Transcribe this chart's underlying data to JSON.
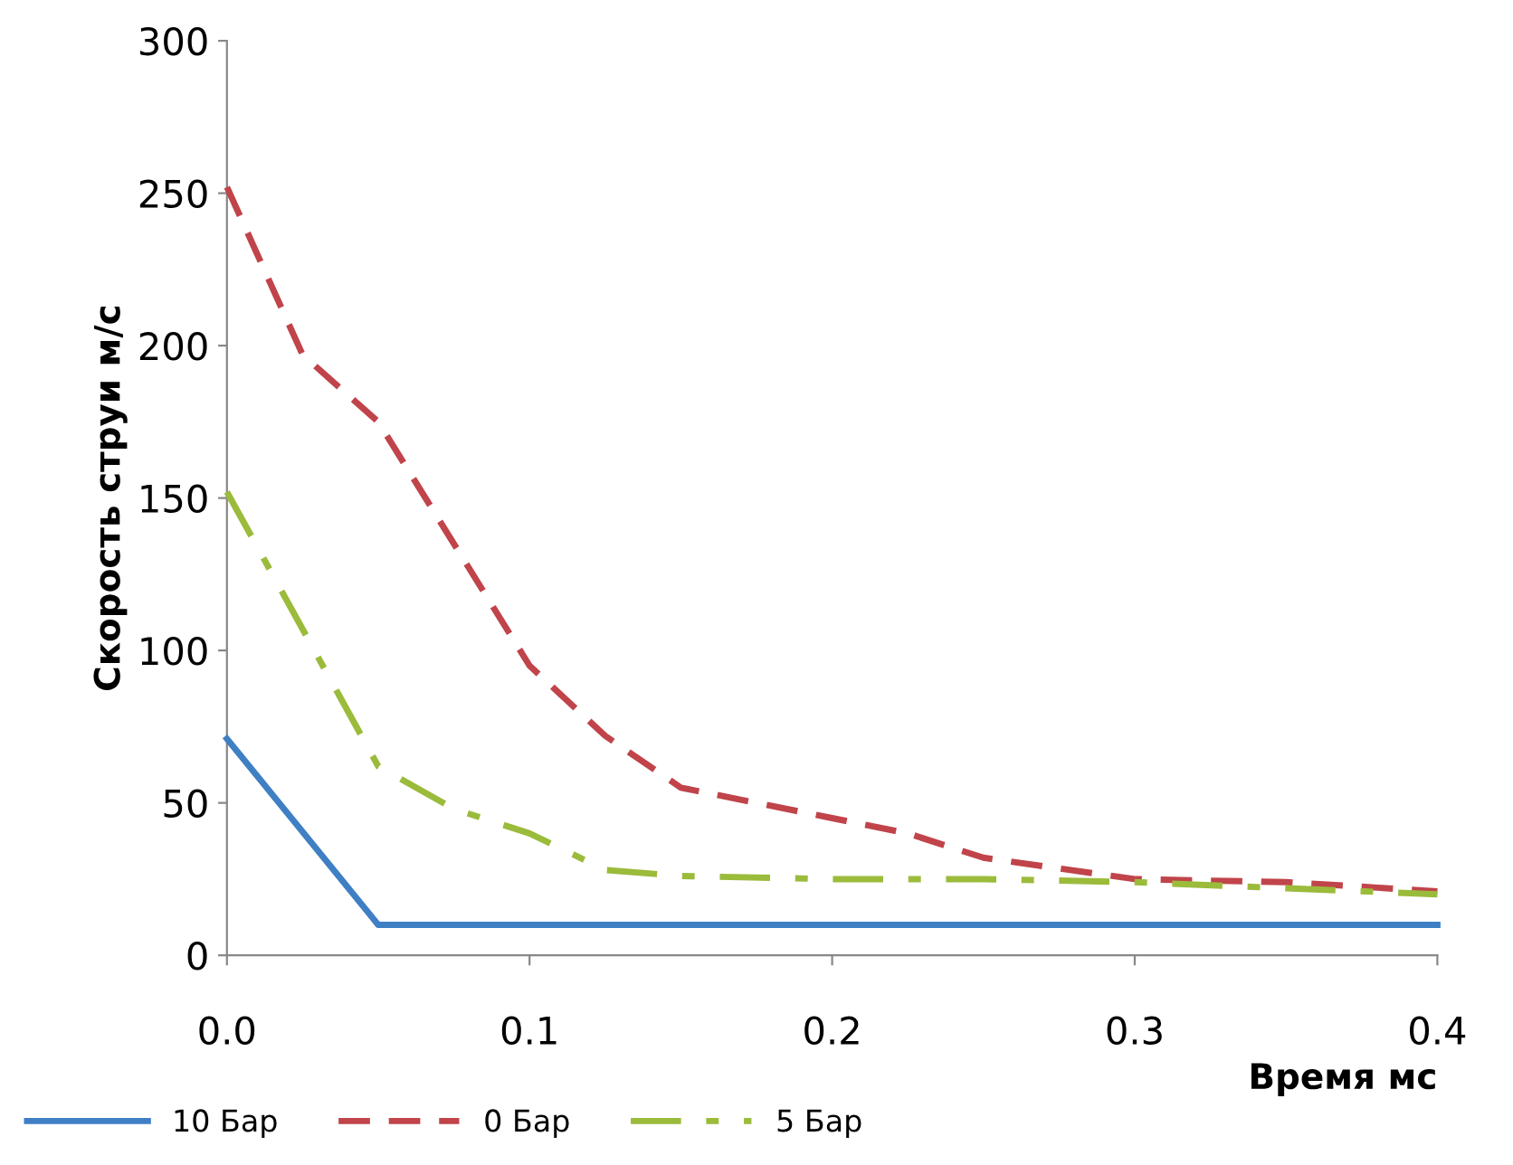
{
  "chart_data": {
    "type": "line",
    "xlabel": "Время мс",
    "ylabel": "Скорость струи м/с",
    "xlim": [
      0,
      0.4
    ],
    "xticks": [
      {
        "value": 0,
        "label": "0.0"
      },
      0.1,
      0.2,
      0.3,
      0.4
    ],
    "ylim": [
      0,
      300
    ],
    "yticks": [
      0,
      50,
      100,
      150,
      200,
      250,
      300
    ],
    "grid": false,
    "legend": "bottom",
    "marker": "none",
    "series": [
      {
        "name": "10 Бар",
        "color": "#3f7fc4",
        "line_style": "solid",
        "x": [
          0,
          0.05,
          0.4
        ],
        "values": [
          71,
          10,
          10
        ]
      },
      {
        "name": "0 Бар",
        "color": "#c0444a",
        "line_style": "dashed",
        "x": [
          0,
          0.025,
          0.05,
          0.1,
          0.125,
          0.15,
          0.2,
          0.225,
          0.25,
          0.3,
          0.35,
          0.4
        ],
        "values": [
          252,
          197,
          175,
          95,
          72,
          55,
          45,
          40,
          32,
          25,
          24,
          21
        ]
      },
      {
        "name": "5 Бар",
        "color": "#9bbb3b",
        "line_style": "dashdot",
        "x": [
          0,
          0.05,
          0.075,
          0.1,
          0.125,
          0.15,
          0.2,
          0.25,
          0.3,
          0.35,
          0.4
        ],
        "values": [
          152,
          62,
          48,
          40,
          28,
          26,
          25,
          25,
          24,
          22,
          20
        ]
      }
    ]
  }
}
